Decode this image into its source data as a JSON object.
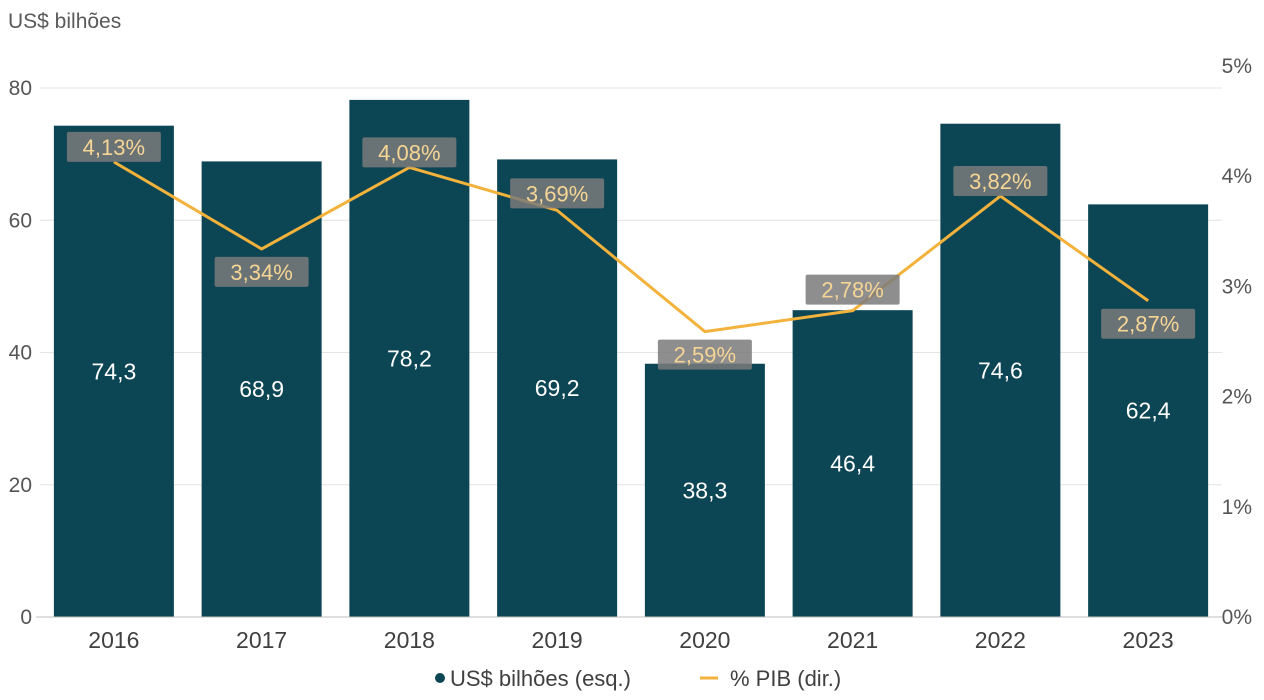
{
  "chart_data": {
    "type": "bar",
    "y_unit_label": "US$ bilhões",
    "categories": [
      "2016",
      "2017",
      "2018",
      "2019",
      "2020",
      "2021",
      "2022",
      "2023"
    ],
    "series": [
      {
        "name": "US$ bilhões (esq.)",
        "kind": "bar",
        "axis": "left",
        "values": [
          74.3,
          68.9,
          78.2,
          69.2,
          38.3,
          46.4,
          74.6,
          62.4
        ],
        "labels": [
          "74,3",
          "68,9",
          "78,2",
          "69,2",
          "38,3",
          "46,4",
          "74,6",
          "62,4"
        ]
      },
      {
        "name": "% PIB (dir.)",
        "kind": "line",
        "axis": "right",
        "values": [
          4.13,
          3.34,
          4.08,
          3.69,
          2.59,
          2.78,
          3.82,
          2.87
        ],
        "labels": [
          "4,13%",
          "3,34%",
          "4,08%",
          "3,69%",
          "2,59%",
          "2,78%",
          "3,82%",
          "2,87%"
        ]
      }
    ],
    "y_left": {
      "min": 0,
      "max": 80,
      "ticks": [
        0,
        20,
        40,
        60,
        80
      ],
      "tick_labels": [
        "0",
        "20",
        "40",
        "60",
        "80"
      ]
    },
    "y_right": {
      "min": 0,
      "max": 5,
      "ticks": [
        0,
        1,
        2,
        3,
        4,
        5
      ],
      "tick_labels": [
        "0%",
        "1%",
        "2%",
        "3%",
        "4%",
        "5%"
      ]
    },
    "grid": true,
    "legend_position": "bottom",
    "colors": {
      "bar": "#0c4553",
      "line": "#f3b23c",
      "line_label_bg": "#7a7a7a",
      "line_label_text": "#f6d595",
      "bar_label_text": "#ffffff",
      "axis_text": "#555555"
    }
  }
}
